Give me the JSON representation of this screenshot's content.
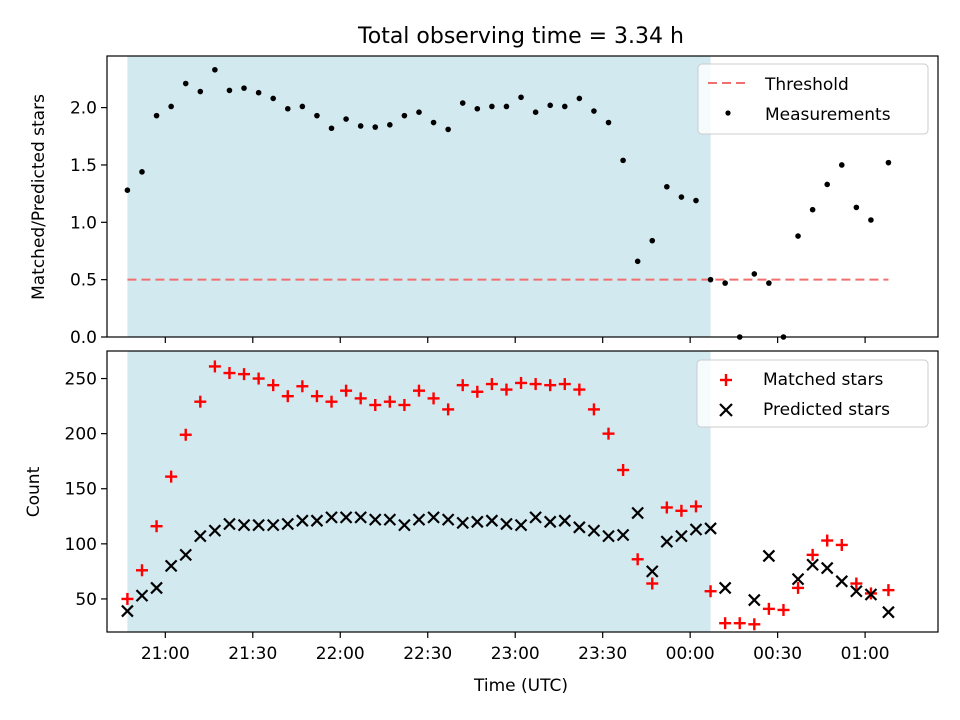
{
  "chart_data": [
    {
      "type": "scatter",
      "title": "Total observing time = 3.34 h",
      "ylabel": "Matched/Predicted stars",
      "xlabel": "",
      "ylim": [
        0,
        2.45
      ],
      "yticks": [
        "0.0",
        "0.5",
        "1.0",
        "1.5",
        "2.0"
      ],
      "ytick_values": [
        0,
        0.5,
        1.0,
        1.5,
        2.0
      ],
      "legend_position": "top-right",
      "threshold": {
        "name": "Threshold",
        "value": 0.5,
        "x_start": "20:47",
        "x_end": "01:08",
        "color": "#f07070"
      },
      "shaded_region": {
        "x_start": "20:47",
        "x_end": "00:07",
        "color": "#d3e9f0"
      },
      "series": [
        {
          "name": "Measurements",
          "color": "#000000",
          "x": [
            "20:47",
            "20:52",
            "20:57",
            "21:02",
            "21:07",
            "21:12",
            "21:17",
            "21:22",
            "21:27",
            "21:32",
            "21:37",
            "21:42",
            "21:47",
            "21:52",
            "21:57",
            "22:02",
            "22:07",
            "22:12",
            "22:17",
            "22:22",
            "22:27",
            "22:32",
            "22:37",
            "22:42",
            "22:47",
            "22:52",
            "22:57",
            "23:02",
            "23:07",
            "23:12",
            "23:17",
            "23:22",
            "23:27",
            "23:32",
            "23:37",
            "23:42",
            "23:47",
            "23:52",
            "23:57",
            "00:02",
            "00:07",
            "00:12",
            "00:17",
            "00:22",
            "00:27",
            "00:32",
            "00:37",
            "00:42",
            "00:47",
            "00:52",
            "00:57",
            "01:02",
            "01:08"
          ],
          "values": [
            1.28,
            1.44,
            1.93,
            2.01,
            2.21,
            2.14,
            2.33,
            2.15,
            2.17,
            2.13,
            2.08,
            1.99,
            2.01,
            1.93,
            1.82,
            1.9,
            1.84,
            1.83,
            1.85,
            1.93,
            1.96,
            1.87,
            1.81,
            2.04,
            1.99,
            2.01,
            2.01,
            2.09,
            1.96,
            2.02,
            2.01,
            2.08,
            1.97,
            1.87,
            1.54,
            0.66,
            0.84,
            1.31,
            1.22,
            1.19,
            0.5,
            0.47,
            0.0,
            0.55,
            0.47,
            0.0,
            0.88,
            1.11,
            1.33,
            1.5,
            1.13,
            1.02,
            1.52
          ]
        }
      ]
    },
    {
      "type": "scatter",
      "title": "",
      "ylabel": "Count",
      "xlabel": "Time (UTC)",
      "ylim": [
        20,
        275
      ],
      "yticks": [
        "50",
        "100",
        "150",
        "200",
        "250"
      ],
      "ytick_values": [
        50,
        100,
        150,
        200,
        250
      ],
      "xticks": [
        "21:00",
        "21:30",
        "22:00",
        "22:30",
        "23:00",
        "23:30",
        "00:00",
        "00:30",
        "01:00"
      ],
      "legend_position": "top-right",
      "shaded_region": {
        "x_start": "20:47",
        "x_end": "00:07",
        "color": "#d3e9f0"
      },
      "series": [
        {
          "name": "Matched stars",
          "marker": "+",
          "color": "#ff0000",
          "x": [
            "20:47",
            "20:52",
            "20:57",
            "21:02",
            "21:07",
            "21:12",
            "21:17",
            "21:22",
            "21:27",
            "21:32",
            "21:37",
            "21:42",
            "21:47",
            "21:52",
            "21:57",
            "22:02",
            "22:07",
            "22:12",
            "22:17",
            "22:22",
            "22:27",
            "22:32",
            "22:37",
            "22:42",
            "22:47",
            "22:52",
            "22:57",
            "23:02",
            "23:07",
            "23:12",
            "23:17",
            "23:22",
            "23:27",
            "23:32",
            "23:37",
            "23:42",
            "23:47",
            "23:52",
            "23:57",
            "00:02",
            "00:07",
            "00:12",
            "00:17",
            "00:22",
            "00:27",
            "00:32",
            "00:37",
            "00:42",
            "00:47",
            "00:52",
            "00:57",
            "01:02",
            "01:08"
          ],
          "values": [
            50,
            76,
            116,
            161,
            199,
            229,
            261,
            255,
            254,
            250,
            244,
            234,
            243,
            234,
            229,
            239,
            232,
            226,
            229,
            226,
            239,
            232,
            222,
            244,
            238,
            245,
            240,
            246,
            245,
            244,
            245,
            240,
            222,
            200,
            167,
            86,
            64,
            133,
            130,
            134,
            57,
            28,
            28,
            27,
            41,
            40,
            60,
            90,
            103,
            99,
            64,
            55,
            58
          ]
        },
        {
          "name": "Predicted stars",
          "marker": "x",
          "color": "#000000",
          "x": [
            "20:47",
            "20:52",
            "20:57",
            "21:02",
            "21:07",
            "21:12",
            "21:17",
            "21:22",
            "21:27",
            "21:32",
            "21:37",
            "21:42",
            "21:47",
            "21:52",
            "21:57",
            "22:02",
            "22:07",
            "22:12",
            "22:17",
            "22:22",
            "22:27",
            "22:32",
            "22:37",
            "22:42",
            "22:47",
            "22:52",
            "22:57",
            "23:02",
            "23:07",
            "23:12",
            "23:17",
            "23:22",
            "23:27",
            "23:32",
            "23:37",
            "23:42",
            "23:47",
            "23:52",
            "23:57",
            "00:02",
            "00:07",
            "00:12",
            "00:22",
            "00:27",
            "00:37",
            "00:42",
            "00:47",
            "00:52",
            "00:57",
            "01:02",
            "01:08"
          ],
          "values": [
            39,
            53,
            60,
            80,
            90,
            107,
            112,
            118,
            117,
            117,
            117,
            118,
            121,
            121,
            124,
            124,
            124,
            122,
            122,
            117,
            122,
            124,
            122,
            119,
            120,
            121,
            118,
            117,
            124,
            120,
            121,
            115,
            112,
            107,
            108,
            128,
            75,
            102,
            107,
            113,
            114,
            60,
            49,
            89,
            68,
            81,
            78,
            66,
            57,
            54,
            38
          ]
        }
      ]
    }
  ]
}
